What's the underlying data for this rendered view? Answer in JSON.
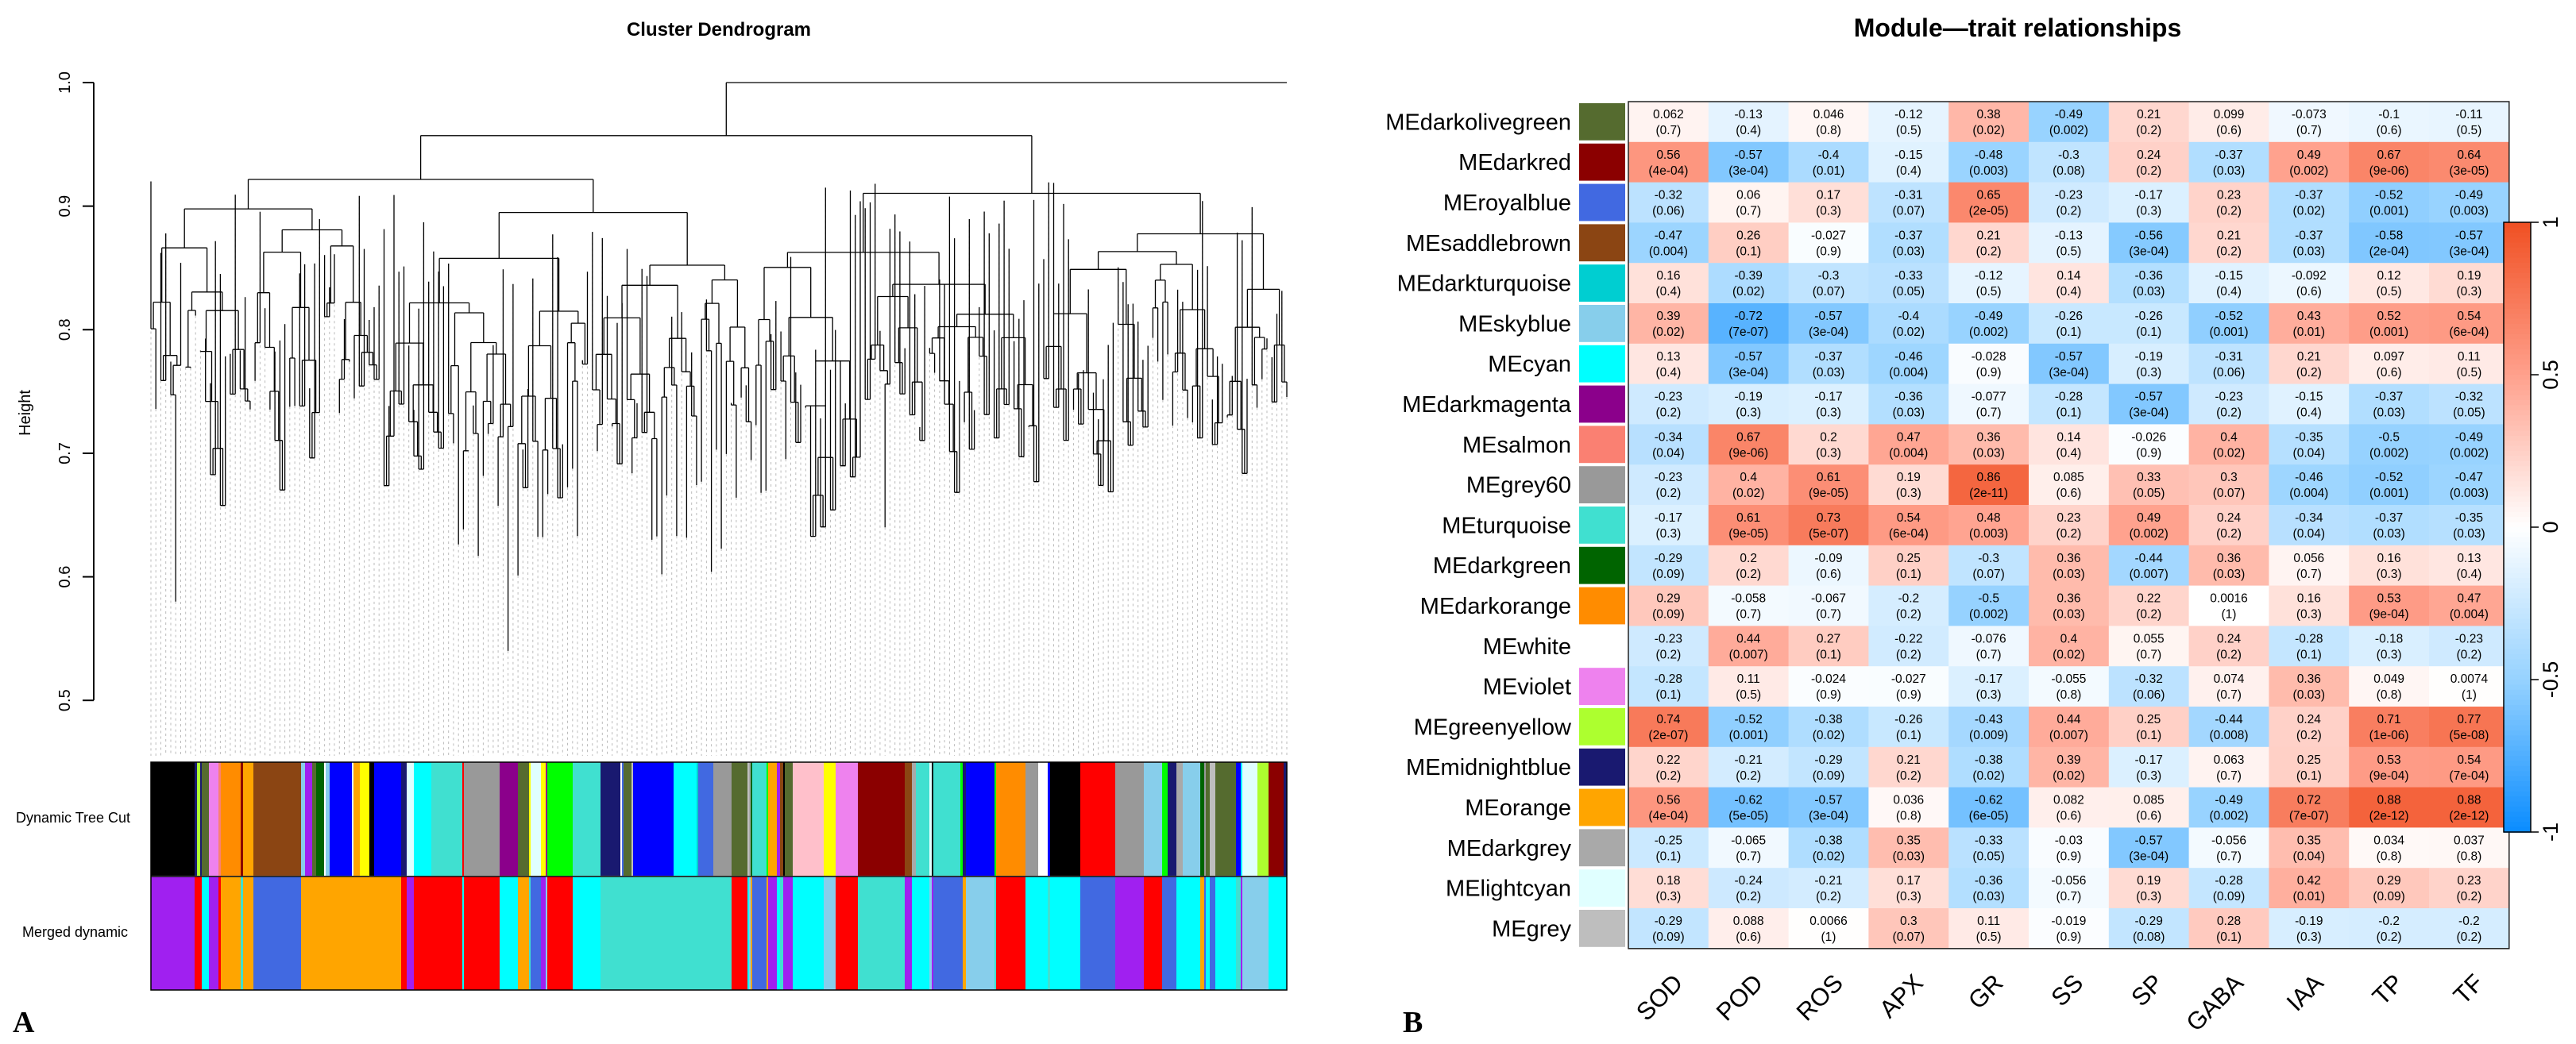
{
  "panel_a": {
    "label": "A",
    "title": "Cluster Dendrogram",
    "ylabel": "Height",
    "yticks": [
      "0.5",
      "0.6",
      "0.7",
      "0.8",
      "0.9",
      "1.0"
    ],
    "row_labels": [
      "Dynamic Tree Cut",
      "Merged dynamic"
    ]
  },
  "panel_b": {
    "label": "B",
    "title": "Module—trait relationships"
  },
  "chart_data": [
    {
      "type": "dendrogram",
      "title": "Cluster Dendrogram",
      "ylabel": "Height",
      "ylim": [
        0.5,
        1.0
      ],
      "color_bars": [
        "Dynamic Tree Cut",
        "Merged dynamic"
      ]
    },
    {
      "type": "heatmap",
      "title": "Module—trait relationships",
      "traits": [
        "SOD",
        "POD",
        "ROS",
        "APX",
        "GR",
        "SS",
        "SP",
        "GABA",
        "IAA",
        "TP",
        "TF"
      ],
      "modules": [
        "MEdarkolivegreen",
        "MEdarkred",
        "MEroyalblue",
        "MEsaddlebrown",
        "MEdarkturquoise",
        "MEskyblue",
        "MEcyan",
        "MEdarkmagenta",
        "MEsalmon",
        "MEgrey60",
        "MEturquoise",
        "MEdarkgreen",
        "MEdarkorange",
        "MEwhite",
        "MEviolet",
        "MEgreenyellow",
        "MEmidnightblue",
        "MEorange",
        "MEdarkgrey",
        "MElightcyan",
        "MEgrey"
      ],
      "module_colors": [
        "#556b2f",
        "#8b0000",
        "#4169e1",
        "#8b4513",
        "#00ced1",
        "#87ceeb",
        "#00ffff",
        "#8b008b",
        "#fa8072",
        "#999999",
        "#40e0d0",
        "#006400",
        "#ff8c00",
        "#ffffff",
        "#ee82ee",
        "#adff2f",
        "#191970",
        "#ffa500",
        "#a9a9a9",
        "#e0ffff",
        "#bebebe"
      ],
      "correlations": [
        [
          "0.062",
          "-0.13",
          "0.046",
          "-0.12",
          "0.38",
          "-0.49",
          "0.21",
          "0.099",
          "-0.073",
          "-0.1",
          "-0.11"
        ],
        [
          "0.56",
          "-0.57",
          "-0.4",
          "-0.15",
          "-0.48",
          "-0.3",
          "0.24",
          "-0.37",
          "0.49",
          "0.67",
          "0.64"
        ],
        [
          "-0.32",
          "0.06",
          "0.17",
          "-0.31",
          "0.65",
          "-0.23",
          "-0.17",
          "0.23",
          "-0.37",
          "-0.52",
          "-0.49"
        ],
        [
          "-0.47",
          "0.26",
          "-0.027",
          "-0.37",
          "0.21",
          "-0.13",
          "-0.56",
          "0.21",
          "-0.37",
          "-0.58",
          "-0.57"
        ],
        [
          "0.16",
          "-0.39",
          "-0.3",
          "-0.33",
          "-0.12",
          "0.14",
          "-0.36",
          "-0.15",
          "-0.092",
          "0.12",
          "0.19"
        ],
        [
          "0.39",
          "-0.72",
          "-0.57",
          "-0.4",
          "-0.49",
          "-0.26",
          "-0.26",
          "-0.52",
          "0.43",
          "0.52",
          "0.54"
        ],
        [
          "0.13",
          "-0.57",
          "-0.37",
          "-0.46",
          "-0.028",
          "-0.57",
          "-0.19",
          "-0.31",
          "0.21",
          "0.097",
          "0.11"
        ],
        [
          "-0.23",
          "-0.19",
          "-0.17",
          "-0.36",
          "-0.077",
          "-0.28",
          "-0.57",
          "-0.23",
          "-0.15",
          "-0.37",
          "-0.32"
        ],
        [
          "-0.34",
          "0.67",
          "0.2",
          "0.47",
          "0.36",
          "0.14",
          "-0.026",
          "0.4",
          "-0.35",
          "-0.5",
          "-0.49"
        ],
        [
          "-0.23",
          "0.4",
          "0.61",
          "0.19",
          "0.86",
          "0.085",
          "0.33",
          "0.3",
          "-0.46",
          "-0.52",
          "-0.47"
        ],
        [
          "-0.17",
          "0.61",
          "0.73",
          "0.54",
          "0.48",
          "0.23",
          "0.49",
          "0.24",
          "-0.34",
          "-0.37",
          "-0.35"
        ],
        [
          "-0.29",
          "0.2",
          "-0.09",
          "0.25",
          "-0.3",
          "0.36",
          "-0.44",
          "0.36",
          "0.056",
          "0.16",
          "0.13"
        ],
        [
          "0.29",
          "-0.058",
          "-0.067",
          "-0.2",
          "-0.5",
          "0.36",
          "0.22",
          "0.0016",
          "0.16",
          "0.53",
          "0.47"
        ],
        [
          "-0.23",
          "0.44",
          "0.27",
          "-0.22",
          "-0.076",
          "0.4",
          "0.055",
          "0.24",
          "-0.28",
          "-0.18",
          "-0.23"
        ],
        [
          "-0.28",
          "0.11",
          "-0.024",
          "-0.027",
          "-0.17",
          "-0.055",
          "-0.32",
          "0.074",
          "0.36",
          "0.049",
          "0.0074"
        ],
        [
          "0.74",
          "-0.52",
          "-0.38",
          "-0.26",
          "-0.43",
          "0.44",
          "0.25",
          "-0.44",
          "0.24",
          "0.71",
          "0.77"
        ],
        [
          "0.22",
          "-0.21",
          "-0.29",
          "0.21",
          "-0.38",
          "0.39",
          "-0.17",
          "0.063",
          "0.25",
          "0.53",
          "0.54"
        ],
        [
          "0.56",
          "-0.62",
          "-0.57",
          "0.036",
          "-0.62",
          "0.082",
          "0.085",
          "-0.49",
          "0.72",
          "0.88",
          "0.88"
        ],
        [
          "-0.25",
          "-0.065",
          "-0.38",
          "0.35",
          "-0.33",
          "-0.03",
          "-0.57",
          "-0.056",
          "0.35",
          "0.034",
          "0.037"
        ],
        [
          "0.18",
          "-0.24",
          "-0.21",
          "0.17",
          "-0.36",
          "-0.056",
          "0.19",
          "-0.28",
          "0.42",
          "0.29",
          "0.23"
        ],
        [
          "-0.29",
          "0.088",
          "0.0066",
          "0.3",
          "0.11",
          "-0.019",
          "-0.29",
          "0.28",
          "-0.19",
          "-0.2",
          "-0.2"
        ]
      ],
      "pvalues": [
        [
          "(0.7)",
          "(0.4)",
          "(0.8)",
          "(0.5)",
          "(0.02)",
          "(0.002)",
          "(0.2)",
          "(0.6)",
          "(0.7)",
          "(0.6)",
          "(0.5)"
        ],
        [
          "(4e-04)",
          "(3e-04)",
          "(0.01)",
          "(0.4)",
          "(0.003)",
          "(0.08)",
          "(0.2)",
          "(0.03)",
          "(0.002)",
          "(9e-06)",
          "(3e-05)"
        ],
        [
          "(0.06)",
          "(0.7)",
          "(0.3)",
          "(0.07)",
          "(2e-05)",
          "(0.2)",
          "(0.3)",
          "(0.2)",
          "(0.02)",
          "(0.001)",
          "(0.003)"
        ],
        [
          "(0.004)",
          "(0.1)",
          "(0.9)",
          "(0.03)",
          "(0.2)",
          "(0.5)",
          "(3e-04)",
          "(0.2)",
          "(0.03)",
          "(2e-04)",
          "(3e-04)"
        ],
        [
          "(0.4)",
          "(0.02)",
          "(0.07)",
          "(0.05)",
          "(0.5)",
          "(0.4)",
          "(0.03)",
          "(0.4)",
          "(0.6)",
          "(0.5)",
          "(0.3)"
        ],
        [
          "(0.02)",
          "(7e-07)",
          "(3e-04)",
          "(0.02)",
          "(0.002)",
          "(0.1)",
          "(0.1)",
          "(0.001)",
          "(0.01)",
          "(0.001)",
          "(6e-04)"
        ],
        [
          "(0.4)",
          "(3e-04)",
          "(0.03)",
          "(0.004)",
          "(0.9)",
          "(3e-04)",
          "(0.3)",
          "(0.06)",
          "(0.2)",
          "(0.6)",
          "(0.5)"
        ],
        [
          "(0.2)",
          "(0.3)",
          "(0.3)",
          "(0.03)",
          "(0.7)",
          "(0.1)",
          "(3e-04)",
          "(0.2)",
          "(0.4)",
          "(0.03)",
          "(0.05)"
        ],
        [
          "(0.04)",
          "(9e-06)",
          "(0.3)",
          "(0.004)",
          "(0.03)",
          "(0.4)",
          "(0.9)",
          "(0.02)",
          "(0.04)",
          "(0.002)",
          "(0.002)"
        ],
        [
          "(0.2)",
          "(0.02)",
          "(9e-05)",
          "(0.3)",
          "(2e-11)",
          "(0.6)",
          "(0.05)",
          "(0.07)",
          "(0.004)",
          "(0.001)",
          "(0.003)"
        ],
        [
          "(0.3)",
          "(9e-05)",
          "(5e-07)",
          "(6e-04)",
          "(0.003)",
          "(0.2)",
          "(0.002)",
          "(0.2)",
          "(0.04)",
          "(0.03)",
          "(0.03)"
        ],
        [
          "(0.09)",
          "(0.2)",
          "(0.6)",
          "(0.1)",
          "(0.07)",
          "(0.03)",
          "(0.007)",
          "(0.03)",
          "(0.7)",
          "(0.3)",
          "(0.4)"
        ],
        [
          "(0.09)",
          "(0.7)",
          "(0.7)",
          "(0.2)",
          "(0.002)",
          "(0.03)",
          "(0.2)",
          "(1)",
          "(0.3)",
          "(9e-04)",
          "(0.004)"
        ],
        [
          "(0.2)",
          "(0.007)",
          "(0.1)",
          "(0.2)",
          "(0.7)",
          "(0.02)",
          "(0.7)",
          "(0.2)",
          "(0.1)",
          "(0.3)",
          "(0.2)"
        ],
        [
          "(0.1)",
          "(0.5)",
          "(0.9)",
          "(0.9)",
          "(0.3)",
          "(0.8)",
          "(0.06)",
          "(0.7)",
          "(0.03)",
          "(0.8)",
          "(1)"
        ],
        [
          "(2e-07)",
          "(0.001)",
          "(0.02)",
          "(0.1)",
          "(0.009)",
          "(0.007)",
          "(0.1)",
          "(0.008)",
          "(0.2)",
          "(1e-06)",
          "(5e-08)"
        ],
        [
          "(0.2)",
          "(0.2)",
          "(0.09)",
          "(0.2)",
          "(0.02)",
          "(0.02)",
          "(0.3)",
          "(0.7)",
          "(0.1)",
          "(9e-04)",
          "(7e-04)"
        ],
        [
          "(4e-04)",
          "(5e-05)",
          "(3e-04)",
          "(0.8)",
          "(6e-05)",
          "(0.6)",
          "(0.6)",
          "(0.002)",
          "(7e-07)",
          "(2e-12)",
          "(2e-12)"
        ],
        [
          "(0.1)",
          "(0.7)",
          "(0.02)",
          "(0.03)",
          "(0.05)",
          "(0.9)",
          "(3e-04)",
          "(0.7)",
          "(0.04)",
          "(0.8)",
          "(0.8)"
        ],
        [
          "(0.3)",
          "(0.2)",
          "(0.2)",
          "(0.3)",
          "(0.03)",
          "(0.7)",
          "(0.3)",
          "(0.09)",
          "(0.01)",
          "(0.09)",
          "(0.2)"
        ],
        [
          "(0.09)",
          "(0.6)",
          "(1)",
          "(0.07)",
          "(0.5)",
          "(0.9)",
          "(0.08)",
          "(0.1)",
          "(0.3)",
          "(0.2)",
          "(0.2)"
        ]
      ],
      "colorbar": {
        "range": [
          -1,
          1
        ],
        "ticks": [
          "1",
          "0.5",
          "0",
          "-0.5",
          "-1"
        ]
      }
    }
  ]
}
